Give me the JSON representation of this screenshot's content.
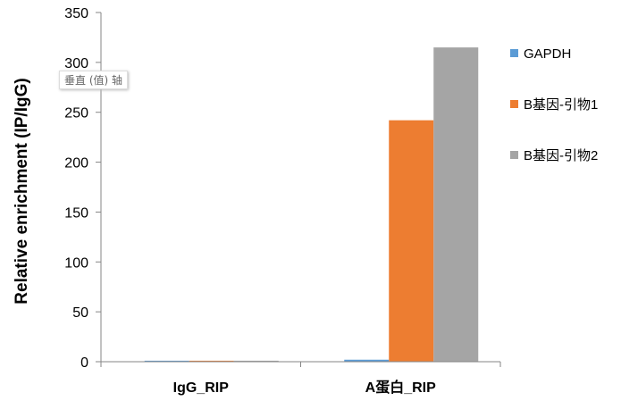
{
  "chart_data": {
    "type": "bar",
    "categories": [
      "IgG_RIP",
      "A蛋白_RIP"
    ],
    "series": [
      {
        "name": "GAPDH",
        "values": [
          1,
          2
        ],
        "color": "#5B9BD5"
      },
      {
        "name": "B基因-引物1",
        "values": [
          1,
          242
        ],
        "color": "#ED7D31"
      },
      {
        "name": "B基因-引物2",
        "values": [
          1,
          315
        ],
        "color": "#A5A5A5"
      }
    ],
    "title": "",
    "xlabel": "",
    "ylabel": "Relative enrichment (IP/IgG)",
    "ylim": [
      0,
      350
    ],
    "yticks": [
      0,
      50,
      100,
      150,
      200,
      250,
      300,
      350
    ],
    "grid": false,
    "legend": "right"
  },
  "tooltip": "垂直 (值) 轴"
}
